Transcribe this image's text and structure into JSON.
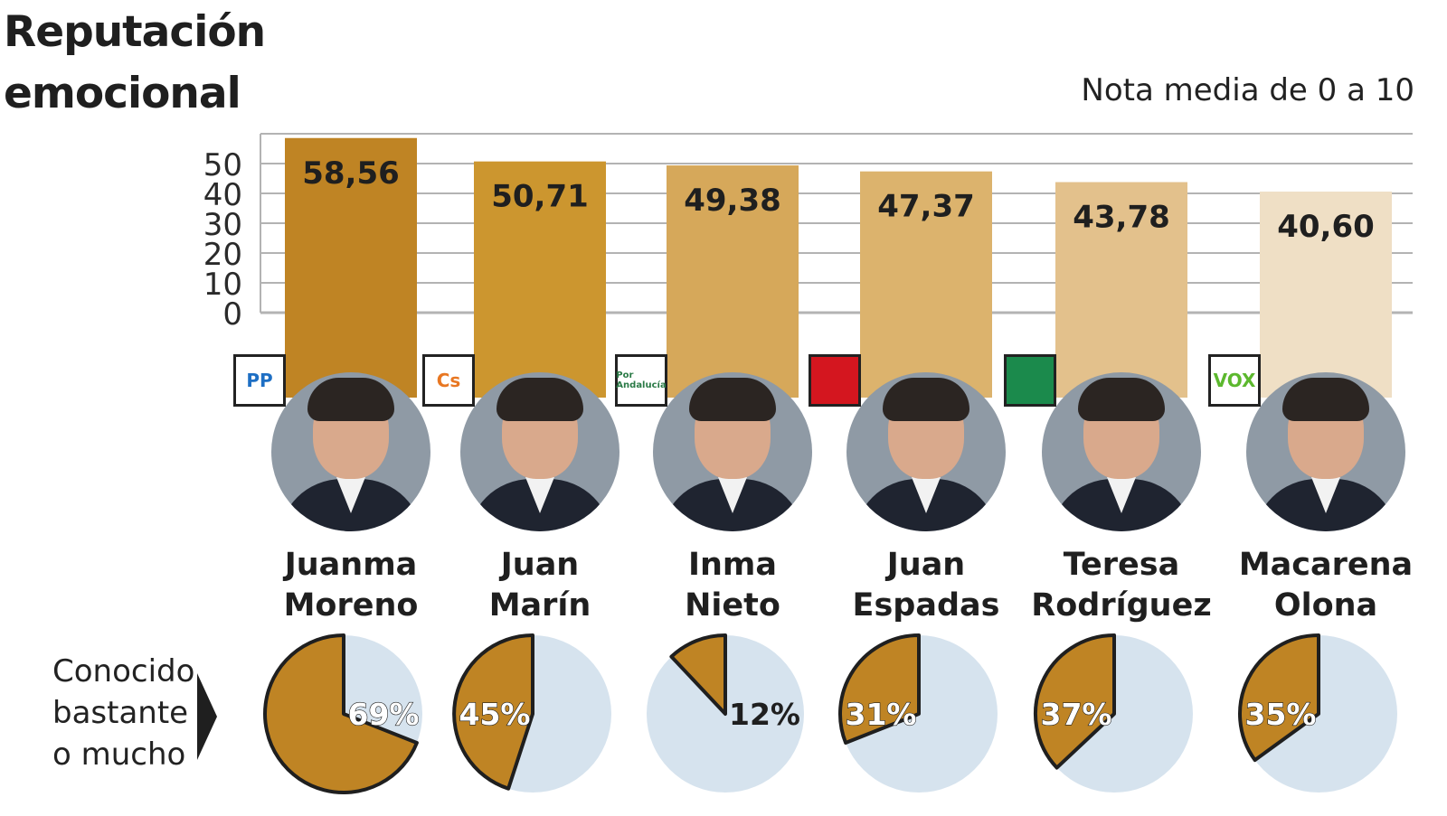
{
  "title": [
    "Reputación",
    "emocional"
  ],
  "subtitle": "Nota media de 0 a 10",
  "side_label": [
    "Conocido",
    "bastante",
    "o mucho"
  ],
  "colors": {
    "bar_shades": [
      "#bf8424",
      "#cc962f",
      "#d6a85a",
      "#dcb36d",
      "#e3c18c",
      "#efdfc5"
    ],
    "pie_fill": "#bf8424",
    "pie_background": "#d6e3ee",
    "gridline": "#b3b3b3"
  },
  "candidates": [
    {
      "first": "Juanma",
      "last": "Moreno",
      "party_logo": "PP",
      "logo_icon": "pp-logo-icon",
      "logo_color": "#1e6fc4"
    },
    {
      "first": "Juan",
      "last": "Marín",
      "party_logo": "Cs",
      "logo_icon": "cs-logo-icon",
      "logo_color": "#e87722"
    },
    {
      "first": "Inma",
      "last": "Nieto",
      "party_logo": "Por Andalucía",
      "logo_icon": "por-andalucia-logo-icon",
      "logo_color": "#2a7a46"
    },
    {
      "first": "Juan",
      "last": "Espadas",
      "party_logo": "",
      "logo_icon": "psoe-rose-fist-logo-icon",
      "logo_color": "#d4161f"
    },
    {
      "first": "Teresa",
      "last": "Rodríguez",
      "party_logo": "",
      "logo_icon": "adelante-andalucia-logo-icon",
      "logo_color": "#1b8a4c"
    },
    {
      "first": "Macarena",
      "last": "Olona",
      "party_logo": "VOX",
      "logo_icon": "vox-logo-icon",
      "logo_color": "#5cb82e"
    }
  ],
  "chart_data": [
    {
      "type": "bar",
      "title": "Reputación emocional",
      "subtitle": "Nota media de 0 a 10",
      "categories": [
        "Juanma Moreno",
        "Juan Marín",
        "Inma Nieto",
        "Juan Espadas",
        "Teresa Rodríguez",
        "Macarena Olona"
      ],
      "values": [
        58.56,
        50.71,
        49.38,
        47.37,
        43.78,
        40.6
      ],
      "value_labels": [
        "58,56",
        "50,71",
        "49,38",
        "47,37",
        "43,78",
        "40,60"
      ],
      "yticks": [
        "0",
        "10",
        "20",
        "30",
        "40",
        "50"
      ],
      "ylim": [
        0,
        60
      ],
      "grid": true
    },
    {
      "type": "pie",
      "title": "Conocido bastante o mucho",
      "categories": [
        "Juanma Moreno",
        "Juan Marín",
        "Inma Nieto",
        "Juan Espadas",
        "Teresa Rodríguez",
        "Macarena Olona"
      ],
      "values": [
        69,
        45,
        12,
        31,
        37,
        35
      ],
      "value_labels": [
        "69%",
        "45%",
        "12%",
        "31%",
        "37%",
        "35%"
      ]
    }
  ]
}
